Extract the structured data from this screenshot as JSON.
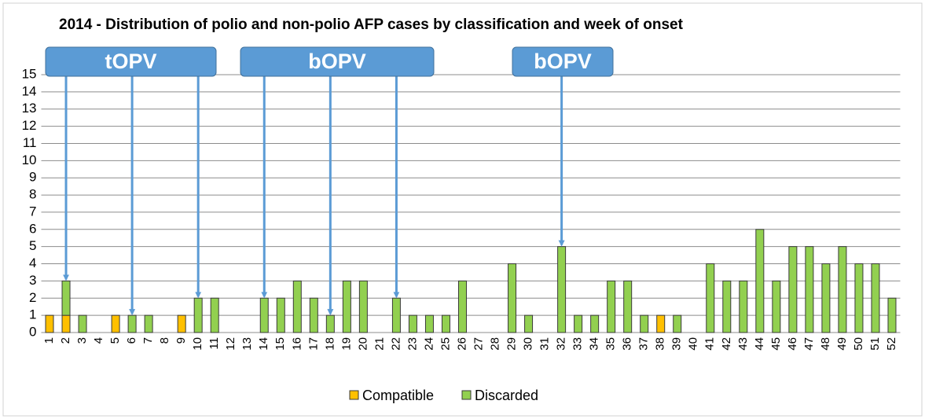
{
  "chart_data": {
    "type": "bar",
    "stacked": true,
    "title": "2014 - Distribution of polio and non-polio AFP cases by classification and week of onset",
    "categories": [
      "1",
      "2",
      "3",
      "4",
      "5",
      "6",
      "7",
      "8",
      "9",
      "10",
      "11",
      "12",
      "13",
      "14",
      "15",
      "16",
      "17",
      "18",
      "19",
      "20",
      "21",
      "22",
      "23",
      "24",
      "25",
      "26",
      "27",
      "28",
      "29",
      "30",
      "31",
      "32",
      "33",
      "34",
      "35",
      "36",
      "37",
      "38",
      "39",
      "40",
      "41",
      "42",
      "43",
      "44",
      "45",
      "46",
      "47",
      "48",
      "49",
      "50",
      "51",
      "52"
    ],
    "series": [
      {
        "name": "Compatible",
        "color": "#ffc000",
        "values": [
          1,
          1,
          0,
          0,
          1,
          0,
          0,
          0,
          1,
          0,
          0,
          0,
          0,
          0,
          0,
          0,
          0,
          0,
          0,
          0,
          0,
          0,
          0,
          0,
          0,
          0,
          0,
          0,
          0,
          0,
          0,
          0,
          0,
          0,
          0,
          0,
          0,
          1,
          0,
          0,
          0,
          0,
          0,
          0,
          0,
          0,
          0,
          0,
          0,
          0,
          0,
          0
        ]
      },
      {
        "name": "Discarded",
        "color": "#92d050",
        "values": [
          0,
          2,
          1,
          0,
          0,
          1,
          1,
          0,
          0,
          2,
          2,
          0,
          0,
          2,
          2,
          3,
          2,
          1,
          3,
          3,
          0,
          2,
          1,
          1,
          1,
          3,
          0,
          0,
          4,
          1,
          0,
          5,
          1,
          1,
          3,
          3,
          1,
          0,
          1,
          0,
          4,
          3,
          3,
          6,
          3,
          5,
          5,
          4,
          5,
          4,
          4,
          2
        ]
      }
    ],
    "ylim": [
      0,
      15
    ],
    "yticks": [
      0,
      1,
      2,
      3,
      4,
      5,
      6,
      7,
      8,
      9,
      10,
      11,
      12,
      13,
      14,
      15
    ],
    "grid": true,
    "legend": "bottom",
    "annotations": [
      "tOPV",
      "bOPV",
      "bOPV"
    ]
  }
}
